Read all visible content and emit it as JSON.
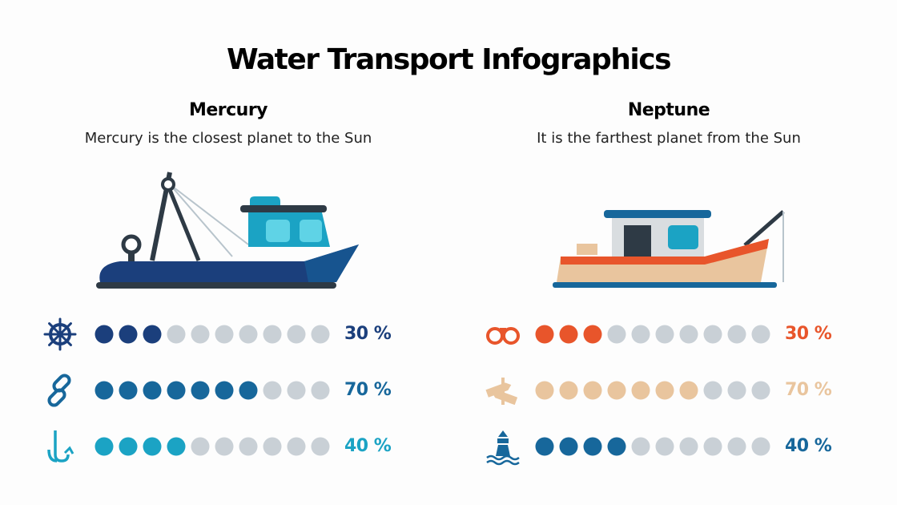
{
  "title": "Water Transport Infographics",
  "panels": [
    {
      "name": "Mercury",
      "text": "Mercury is the closest planet to the Sun",
      "rows": [
        {
          "icon": "helm",
          "value": 30,
          "value_label": "30 %",
          "color": "#1b3f7c"
        },
        {
          "icon": "chain",
          "value": 70,
          "value_label": "70 %",
          "color": "#17679b"
        },
        {
          "icon": "anchor",
          "value": 40,
          "value_label": "40 %",
          "color": "#1ba3c4"
        }
      ]
    },
    {
      "name": "Neptune",
      "text": "It is the farthest planet from the Sun",
      "rows": [
        {
          "icon": "binoculars",
          "value": 30,
          "value_label": "30 %",
          "color": "#e8552b"
        },
        {
          "icon": "signpost",
          "value": 70,
          "value_label": "70 %",
          "color": "#e9c59e"
        },
        {
          "icon": "lighthouse",
          "value": 40,
          "value_label": "40 %",
          "color": "#17679b"
        }
      ]
    }
  ]
}
